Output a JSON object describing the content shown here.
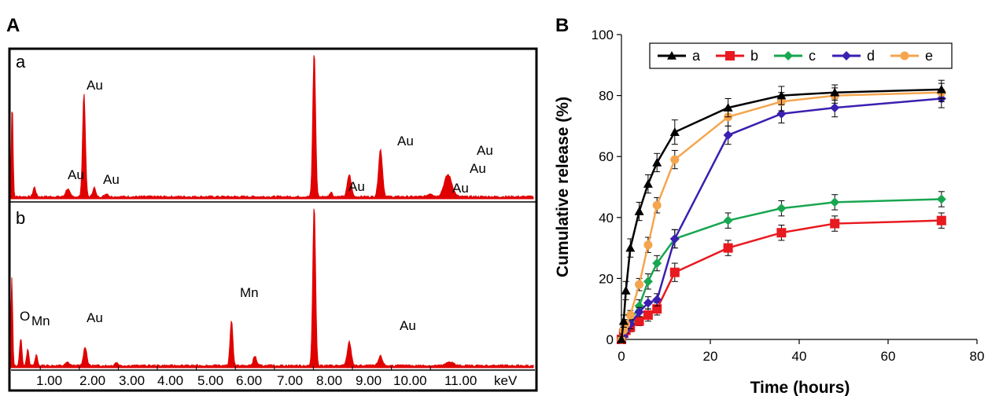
{
  "panel_a": {
    "label": "A",
    "spectra": [
      {
        "label": "a",
        "peaks": [
          {
            "text": "Au",
            "x": 2.12
          },
          {
            "text": "Au",
            "x": 1.65
          },
          {
            "text": "Au",
            "x": 2.35
          },
          {
            "text": "Au",
            "x": 8.45
          },
          {
            "text": "Au",
            "x": 9.65
          },
          {
            "text": "Au",
            "x": 10.9
          },
          {
            "text": "Au",
            "x": 11.35
          },
          {
            "text": "Au",
            "x": 11.38
          }
        ]
      },
      {
        "label": "b",
        "peaks": [
          {
            "text": "O",
            "x": 0.5
          },
          {
            "text": "Mn",
            "x": 0.72
          },
          {
            "text": "Au",
            "x": 2.12
          },
          {
            "text": "Mn",
            "x": 5.9
          },
          {
            "text": "Au",
            "x": 9.75
          }
        ]
      }
    ],
    "x_ticks": [
      "1.00",
      "2.00",
      "3.00",
      "4.00",
      "5.00",
      "6.00",
      "7.00",
      "8.00",
      "9.00",
      "10.00",
      "11.00"
    ],
    "x_unit": "keV"
  },
  "chart_data": {
    "type": "line",
    "panel_label": "B",
    "xlabel": "Time (hours)",
    "ylabel": "Cumulative release (%)",
    "xlim": [
      0,
      80
    ],
    "ylim": [
      0,
      100
    ],
    "x_ticks": [
      0,
      20,
      40,
      60,
      80
    ],
    "y_ticks": [
      0,
      20,
      40,
      60,
      80,
      100
    ],
    "legend_position": "top-right",
    "x": [
      0,
      0.5,
      1,
      2,
      4,
      6,
      8,
      12,
      24,
      36,
      48,
      72
    ],
    "series": [
      {
        "name": "a",
        "color": "#000000",
        "marker": "triangle",
        "values": [
          0,
          6,
          16,
          30,
          42,
          51,
          58,
          68,
          76,
          80,
          81,
          82
        ],
        "errors": [
          1,
          2,
          3,
          3,
          3,
          3,
          3,
          4,
          3,
          3,
          2.5,
          3
        ]
      },
      {
        "name": "b",
        "color": "#e8191f",
        "marker": "square",
        "values": [
          0,
          2,
          3,
          4,
          6,
          8,
          10,
          22,
          30,
          35,
          38,
          39
        ],
        "errors": [
          1,
          1,
          1,
          1.5,
          1.5,
          2,
          2,
          3,
          2.5,
          2.5,
          2.5,
          2.5
        ]
      },
      {
        "name": "c",
        "color": "#19a650",
        "marker": "diamond",
        "values": [
          0,
          3,
          5,
          6,
          11,
          19,
          25,
          33,
          39,
          43,
          45,
          46
        ],
        "errors": [
          1,
          1,
          1.5,
          1.5,
          2,
          2.5,
          2.5,
          3,
          2.5,
          2.5,
          2.5,
          2.5
        ]
      },
      {
        "name": "d",
        "color": "#3b1fb0",
        "marker": "diamond",
        "values": [
          0,
          1,
          3,
          5,
          9,
          12,
          13,
          33,
          67,
          74,
          76,
          79
        ],
        "errors": [
          1,
          1,
          1,
          1.5,
          1.5,
          2,
          2,
          3,
          3,
          3,
          3,
          3
        ]
      },
      {
        "name": "e",
        "color": "#f5a54e",
        "marker": "circle",
        "values": [
          0,
          3,
          5,
          8,
          18,
          31,
          44,
          59,
          73,
          78,
          80,
          81
        ],
        "errors": [
          1,
          1,
          1.5,
          1.5,
          2,
          2.5,
          2.5,
          3,
          3,
          3,
          2.5,
          3
        ]
      }
    ]
  }
}
